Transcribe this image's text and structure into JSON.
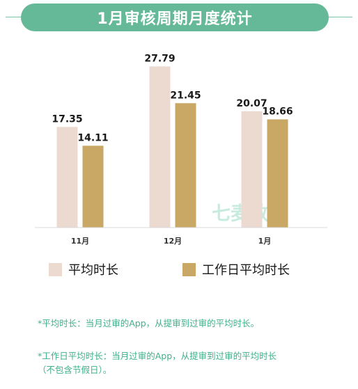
{
  "title": "1月审核周期月度统计",
  "colors": {
    "banner": "#66b998",
    "series_avg": "#ecd9d0",
    "series_workday": "#c9a765",
    "note_text": "#3fb08a"
  },
  "chart_data": {
    "type": "bar",
    "categories": [
      "11月",
      "12月",
      "1月"
    ],
    "series": [
      {
        "name": "平均时长",
        "values": [
          17.35,
          27.79,
          20.07
        ]
      },
      {
        "name": "工作日平均时长",
        "values": [
          14.11,
          21.45,
          18.66
        ]
      }
    ],
    "ylim": [
      0,
      30
    ],
    "grid": false,
    "legend_position": "bottom"
  },
  "watermark": "七麦数据",
  "notes": [
    "*平均时长：当月过审的App，从提审到过审的平均时长。",
    "*工作日平均时长：当月过审的App，从提审到过审的平均时长",
    "（不包含节假日）。"
  ]
}
